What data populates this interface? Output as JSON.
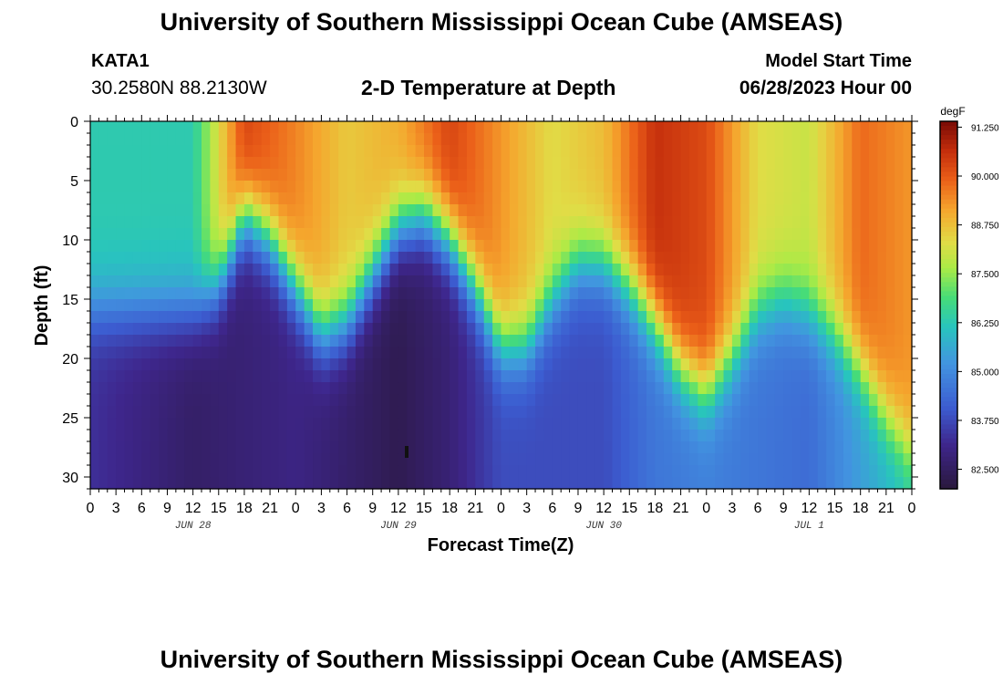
{
  "header": {
    "title": "University of Southern Mississippi Ocean Cube (AMSEAS)",
    "station": "KATA1",
    "coords": "30.2580N  88.2130W",
    "chart_title": "2-D Temperature at Depth",
    "start_label": "Model Start Time",
    "start_value": "06/28/2023 Hour 00"
  },
  "footer": {
    "title": "University of Southern Mississippi Ocean Cube (AMSEAS)"
  },
  "chart_data": {
    "type": "heatmap",
    "title": "2-D Temperature at Depth",
    "xlabel": "Forecast Time(Z)",
    "ylabel": "Depth (ft)",
    "x_hours_range": [
      0,
      96
    ],
    "ylim": [
      31,
      0
    ],
    "x_tick_labels": [
      "0",
      "3",
      "6",
      "9",
      "12",
      "15",
      "18",
      "21",
      "0",
      "3",
      "6",
      "9",
      "12",
      "15",
      "18",
      "21",
      "0",
      "3",
      "6",
      "9",
      "12",
      "15",
      "18",
      "21",
      "0",
      "3",
      "6",
      "9",
      "12",
      "15",
      "18",
      "21",
      "0"
    ],
    "date_labels": [
      {
        "label": "JUN 28",
        "hour": 12
      },
      {
        "label": "JUN 29",
        "hour": 36
      },
      {
        "label": "JUN 30",
        "hour": 60
      },
      {
        "label": "JUL 1",
        "hour": 84
      }
    ],
    "y_ticks": [
      0,
      5,
      10,
      15,
      20,
      25,
      30
    ],
    "colorbar": {
      "unit": "degF",
      "range": [
        82.0,
        91.4
      ],
      "ticks": [
        "91.250",
        "90.000",
        "88.750",
        "87.500",
        "86.250",
        "85.000",
        "83.750",
        "82.500"
      ]
    },
    "thermocline_depth_ft": [
      {
        "hour": 0,
        "depth": 16
      },
      {
        "hour": 6,
        "depth": 16
      },
      {
        "hour": 12,
        "depth": 16
      },
      {
        "hour": 15,
        "depth": 14
      },
      {
        "hour": 18,
        "depth": 8
      },
      {
        "hour": 21,
        "depth": 10
      },
      {
        "hour": 24,
        "depth": 14
      },
      {
        "hour": 27,
        "depth": 18
      },
      {
        "hour": 30,
        "depth": 17
      },
      {
        "hour": 33,
        "depth": 13
      },
      {
        "hour": 36,
        "depth": 9
      },
      {
        "hour": 39,
        "depth": 8
      },
      {
        "hour": 42,
        "depth": 10
      },
      {
        "hour": 45,
        "depth": 14
      },
      {
        "hour": 48,
        "depth": 19
      },
      {
        "hour": 51,
        "depth": 19
      },
      {
        "hour": 54,
        "depth": 15
      },
      {
        "hour": 57,
        "depth": 12
      },
      {
        "hour": 60,
        "depth": 12
      },
      {
        "hour": 63,
        "depth": 14
      },
      {
        "hour": 66,
        "depth": 17
      },
      {
        "hour": 69,
        "depth": 21
      },
      {
        "hour": 72,
        "depth": 23
      },
      {
        "hour": 75,
        "depth": 20
      },
      {
        "hour": 78,
        "depth": 16
      },
      {
        "hour": 81,
        "depth": 15
      },
      {
        "hour": 84,
        "depth": 16
      },
      {
        "hour": 87,
        "depth": 18
      },
      {
        "hour": 90,
        "depth": 21
      },
      {
        "hour": 93,
        "depth": 25
      },
      {
        "hour": 96,
        "depth": 28
      }
    ],
    "surface_temp_degF": [
      {
        "hour": 0,
        "value": 86.3
      },
      {
        "hour": 12,
        "value": 86.3
      },
      {
        "hour": 15,
        "value": 88.3
      },
      {
        "hour": 18,
        "value": 90.3
      },
      {
        "hour": 24,
        "value": 89.5
      },
      {
        "hour": 30,
        "value": 88.6
      },
      {
        "hour": 36,
        "value": 89.0
      },
      {
        "hour": 42,
        "value": 90.3
      },
      {
        "hour": 48,
        "value": 89.3
      },
      {
        "hour": 54,
        "value": 88.3
      },
      {
        "hour": 60,
        "value": 88.8
      },
      {
        "hour": 66,
        "value": 90.6
      },
      {
        "hour": 72,
        "value": 90.2
      },
      {
        "hour": 78,
        "value": 88.3
      },
      {
        "hour": 84,
        "value": 88.0
      },
      {
        "hour": 90,
        "value": 89.8
      },
      {
        "hour": 96,
        "value": 89.3
      }
    ],
    "bottom_temp_degF": [
      {
        "hour": 0,
        "value": 83.3
      },
      {
        "hour": 12,
        "value": 82.6
      },
      {
        "hour": 24,
        "value": 83.0
      },
      {
        "hour": 36,
        "value": 82.3
      },
      {
        "hour": 42,
        "value": 82.8
      },
      {
        "hour": 48,
        "value": 83.8
      },
      {
        "hour": 60,
        "value": 83.8
      },
      {
        "hour": 66,
        "value": 84.6
      },
      {
        "hour": 72,
        "value": 84.8
      },
      {
        "hour": 78,
        "value": 84.6
      },
      {
        "hour": 84,
        "value": 84.4
      },
      {
        "hour": 90,
        "value": 85.4
      },
      {
        "hour": 96,
        "value": 86.2
      }
    ]
  }
}
